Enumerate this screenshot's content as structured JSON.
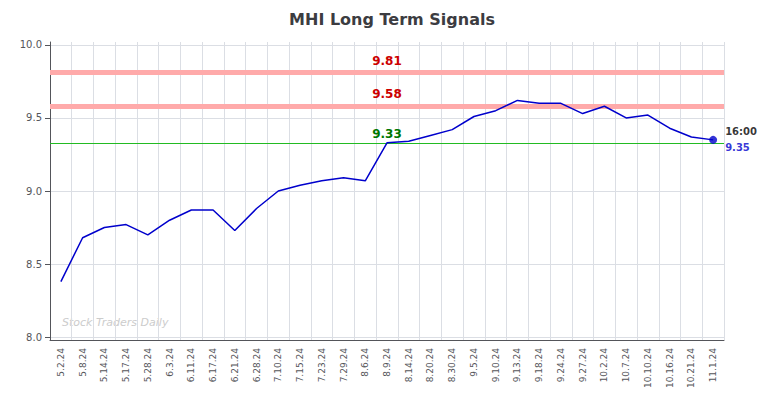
{
  "chart_data": {
    "type": "line",
    "title": "MHI Long Term Signals",
    "categories": [
      "5.2.24",
      "5.8.24",
      "5.14.24",
      "5.17.24",
      "5.28.24",
      "6.3.24",
      "6.11.24",
      "6.17.24",
      "6.21.24",
      "6.28.24",
      "7.10.24",
      "7.15.24",
      "7.23.24",
      "7.29.24",
      "8.6.24",
      "8.9.24",
      "8.14.24",
      "8.20.24",
      "8.30.24",
      "9.5.24",
      "9.10.24",
      "9.13.24",
      "9.18.24",
      "9.24.24",
      "9.27.24",
      "10.2.24",
      "10.7.24",
      "10.10.24",
      "10.16.24",
      "10.21.24",
      "11.1.24"
    ],
    "values": [
      8.38,
      8.68,
      8.75,
      8.77,
      8.7,
      8.8,
      8.87,
      8.87,
      8.73,
      8.88,
      9.0,
      9.04,
      9.07,
      9.09,
      9.07,
      9.33,
      9.34,
      9.38,
      9.42,
      9.51,
      9.55,
      9.62,
      9.6,
      9.6,
      9.53,
      9.58,
      9.5,
      9.52,
      9.43,
      9.37,
      9.35
    ],
    "color": "#0000cc",
    "ylim": [
      7.98,
      10.02
    ],
    "yticks": [
      {
        "value": 8.0,
        "label": "8.0"
      },
      8.5,
      {
        "value": 9.0,
        "label": "9.0"
      },
      9.5,
      {
        "value": 10.0,
        "label": "10.0"
      }
    ],
    "grid": true,
    "hlines": [
      {
        "value": 9.81,
        "label": "9.81",
        "color": "#ffaaaa",
        "label_color": "#cc0000",
        "line_style": "band"
      },
      {
        "value": 9.58,
        "label": "9.58",
        "color": "#ffaaaa",
        "label_color": "#cc0000",
        "line_style": "band"
      },
      {
        "value": 9.33,
        "label": "9.33",
        "color": "#22bb22",
        "label_color": "#007700",
        "line_style": "solid"
      }
    ],
    "last_point": {
      "time_label": "16:00",
      "time_color": "#000000",
      "value_label": "9.35",
      "value_color": "#0000cc",
      "color": "#0000cc"
    },
    "watermark": {
      "text": "Stock Traders Daily",
      "color": "#cccccc"
    }
  }
}
